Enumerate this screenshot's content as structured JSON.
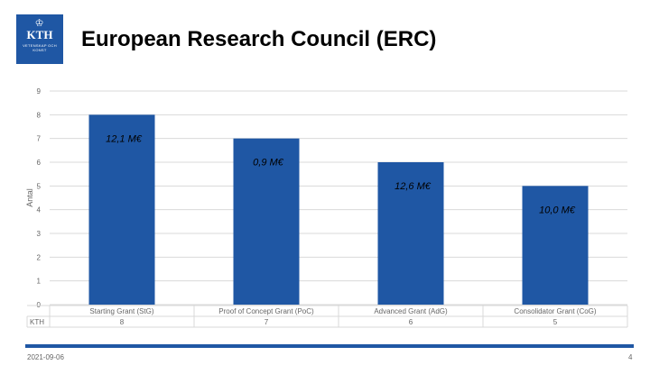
{
  "slide": {
    "title": "European Research Council (ERC)",
    "date": "2021-09-06",
    "page_number": "4",
    "logo": {
      "text": "KTH",
      "subtitle": "VETENSKAP OCH KONST",
      "icon": "kth-crown-logo"
    }
  },
  "colors": {
    "bar": "#1f57a4",
    "accent": "#1f57a4",
    "grid": "#d9d9d9",
    "text": "#666666"
  },
  "chart_data": {
    "type": "bar",
    "categories": [
      "Starting Grant (StG)",
      "Proof of Concept Grant (PoC)",
      "Advanced Grant (AdG)",
      "Consolidator Grant (CoG)"
    ],
    "series": [
      {
        "name": "KTH",
        "values": [
          8,
          7,
          6,
          5
        ]
      }
    ],
    "data_labels": [
      "12,1 M€",
      "0,9 M€",
      "12,6 M€",
      "10,0 M€"
    ],
    "ylabel": "Antal",
    "yticks": [
      0,
      1,
      2,
      3,
      4,
      5,
      6,
      7,
      8,
      9
    ],
    "ylim": [
      0,
      9
    ],
    "grid": true,
    "legend": "data-table-below",
    "data_table": {
      "series_label": "KTH",
      "values": [
        "8",
        "7",
        "6",
        "5"
      ]
    }
  }
}
